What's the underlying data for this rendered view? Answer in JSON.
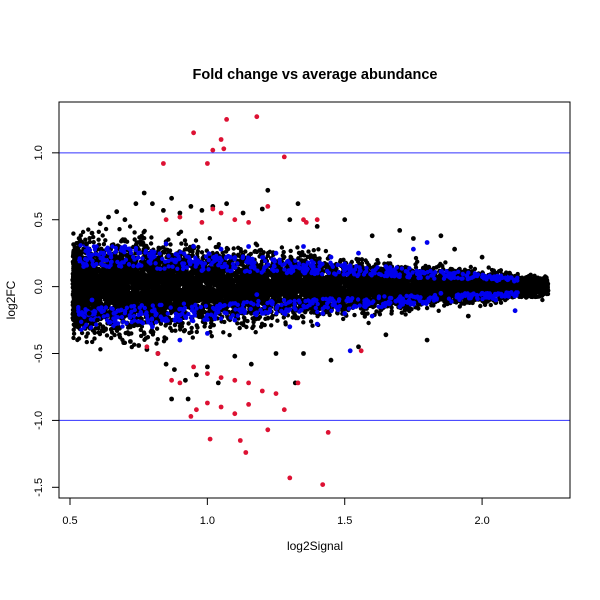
{
  "chart_data": {
    "type": "scatter",
    "title": "Fold change vs average abundance",
    "xlabel": "log2Signal",
    "ylabel": "log2FC",
    "xlim": [
      0.46,
      2.32
    ],
    "ylim": [
      -1.58,
      1.38
    ],
    "x_ticks": [
      0.5,
      1.0,
      1.5,
      2.0
    ],
    "x_tick_labels": [
      "0.5",
      "1.0",
      "1.5",
      "2.0"
    ],
    "y_ticks": [
      -1.5,
      -1.0,
      -0.5,
      0.0,
      0.5,
      1.0
    ],
    "y_tick_labels": [
      "-1.5",
      "-1.0",
      "-0.5",
      "0.0",
      "0.5",
      "1.0"
    ],
    "reference_lines": [
      {
        "y": 1.0,
        "color": "#3333ff"
      },
      {
        "y": -1.0,
        "color": "#3333ff"
      }
    ],
    "grid": false,
    "legend": "none",
    "series": [
      {
        "color": "#000000",
        "shape": "filled-circle",
        "points": [
          [
            0.51,
            0.05
          ],
          [
            0.52,
            0.18
          ],
          [
            0.53,
            -0.08
          ],
          [
            0.54,
            0.25
          ],
          [
            0.55,
            -0.12
          ],
          [
            0.56,
            0.32
          ],
          [
            0.57,
            -0.2
          ],
          [
            0.58,
            0.4
          ],
          [
            0.6,
            -0.25
          ],
          [
            0.61,
            0.47
          ],
          [
            0.62,
            -0.3
          ],
          [
            0.64,
            0.52
          ],
          [
            0.65,
            -0.32
          ],
          [
            0.67,
            0.56
          ],
          [
            0.68,
            -0.36
          ],
          [
            0.7,
            0.5
          ],
          [
            0.72,
            -0.41
          ],
          [
            0.74,
            0.62
          ],
          [
            0.75,
            -0.44
          ],
          [
            0.77,
            0.7
          ],
          [
            0.78,
            -0.47
          ],
          [
            0.8,
            0.62
          ],
          [
            0.82,
            -0.5
          ],
          [
            0.84,
            0.57
          ],
          [
            0.85,
            -0.58
          ],
          [
            0.87,
            0.66
          ],
          [
            0.88,
            -0.62
          ],
          [
            0.9,
            0.55
          ],
          [
            0.92,
            -0.7
          ],
          [
            0.94,
            0.6
          ],
          [
            0.96,
            -0.66
          ],
          [
            0.98,
            0.57
          ],
          [
            1.0,
            -0.6
          ],
          [
            1.02,
            0.6
          ],
          [
            1.04,
            -0.72
          ],
          [
            1.07,
            0.62
          ],
          [
            1.1,
            -0.52
          ],
          [
            1.13,
            0.55
          ],
          [
            1.16,
            -0.58
          ],
          [
            1.2,
            0.58
          ],
          [
            1.22,
            0.72
          ],
          [
            1.25,
            -0.5
          ],
          [
            1.3,
            0.5
          ],
          [
            1.33,
            0.62
          ],
          [
            1.35,
            -0.5
          ],
          [
            1.4,
            0.45
          ],
          [
            1.45,
            -0.55
          ],
          [
            1.5,
            0.5
          ],
          [
            1.55,
            -0.45
          ],
          [
            1.6,
            0.38
          ],
          [
            1.65,
            -0.36
          ],
          [
            1.7,
            0.42
          ],
          [
            1.75,
            0.36
          ],
          [
            1.8,
            -0.4
          ],
          [
            1.85,
            0.38
          ],
          [
            1.9,
            0.28
          ],
          [
            1.95,
            -0.22
          ],
          [
            2.0,
            0.22
          ],
          [
            2.05,
            -0.12
          ],
          [
            2.1,
            0.1
          ],
          [
            2.15,
            -0.06
          ],
          [
            2.2,
            0.02
          ],
          [
            2.24,
            -0.03
          ],
          [
            0.93,
            -0.84
          ],
          [
            0.87,
            -0.84
          ],
          [
            1.32,
            -0.72
          ]
        ]
      },
      {
        "color": "#0000ee",
        "shape": "filled-circle",
        "points": [
          [
            0.55,
            0.15
          ],
          [
            0.58,
            -0.1
          ],
          [
            0.62,
            0.2
          ],
          [
            0.66,
            -0.2
          ],
          [
            0.7,
            0.3
          ],
          [
            0.75,
            0.25
          ],
          [
            0.8,
            -0.3
          ],
          [
            0.85,
            0.32
          ],
          [
            0.9,
            -0.4
          ],
          [
            0.95,
            0.3
          ],
          [
            1.0,
            -0.35
          ],
          [
            1.05,
            0.28
          ],
          [
            1.1,
            -0.25
          ],
          [
            1.15,
            0.3
          ],
          [
            1.2,
            -0.2
          ],
          [
            1.25,
            0.25
          ],
          [
            1.3,
            -0.3
          ],
          [
            1.35,
            0.3
          ],
          [
            1.4,
            -0.28
          ],
          [
            1.45,
            0.22
          ],
          [
            1.5,
            -0.2
          ],
          [
            1.55,
            0.25
          ],
          [
            1.6,
            -0.22
          ],
          [
            1.65,
            0.15
          ],
          [
            1.7,
            -0.15
          ],
          [
            1.75,
            0.28
          ],
          [
            1.8,
            0.33
          ],
          [
            1.85,
            -0.05
          ],
          [
            1.9,
            0.1
          ],
          [
            2.0,
            -0.05
          ],
          [
            2.05,
            -0.1
          ],
          [
            2.12,
            -0.18
          ],
          [
            1.52,
            -0.48
          ],
          [
            1.42,
            -0.2
          ],
          [
            0.98,
            0.12
          ],
          [
            1.18,
            -0.06
          ]
        ]
      },
      {
        "color": "#dd1133",
        "shape": "filled-circle",
        "points": [
          [
            0.95,
            1.15
          ],
          [
            1.02,
            1.02
          ],
          [
            1.07,
            1.25
          ],
          [
            1.05,
            1.1
          ],
          [
            1.18,
            1.27
          ],
          [
            1.28,
            0.97
          ],
          [
            1.0,
            0.92
          ],
          [
            0.84,
            0.92
          ],
          [
            1.06,
            1.03
          ],
          [
            0.85,
            0.5
          ],
          [
            0.9,
            0.52
          ],
          [
            0.98,
            0.48
          ],
          [
            1.02,
            0.58
          ],
          [
            1.05,
            0.55
          ],
          [
            1.1,
            0.5
          ],
          [
            1.15,
            0.48
          ],
          [
            1.22,
            0.6
          ],
          [
            1.35,
            0.5
          ],
          [
            1.4,
            0.5
          ],
          [
            0.78,
            -0.45
          ],
          [
            0.82,
            -0.5
          ],
          [
            0.87,
            -0.7
          ],
          [
            0.9,
            -0.72
          ],
          [
            0.95,
            -0.6
          ],
          [
            1.0,
            -0.65
          ],
          [
            1.05,
            -0.68
          ],
          [
            1.1,
            -0.7
          ],
          [
            1.15,
            -0.72
          ],
          [
            1.2,
            -0.78
          ],
          [
            0.94,
            -0.97
          ],
          [
            0.96,
            -0.92
          ],
          [
            1.0,
            -0.87
          ],
          [
            1.05,
            -0.9
          ],
          [
            1.1,
            -0.95
          ],
          [
            1.15,
            -0.88
          ],
          [
            1.01,
            -1.14
          ],
          [
            1.12,
            -1.15
          ],
          [
            1.14,
            -1.24
          ],
          [
            1.22,
            -1.07
          ],
          [
            1.28,
            -0.92
          ],
          [
            1.44,
            -1.09
          ],
          [
            1.3,
            -1.43
          ],
          [
            1.42,
            -1.48
          ],
          [
            1.25,
            -0.8
          ],
          [
            1.33,
            -0.72
          ],
          [
            1.56,
            -0.48
          ],
          [
            1.36,
            0.48
          ]
        ]
      }
    ]
  }
}
